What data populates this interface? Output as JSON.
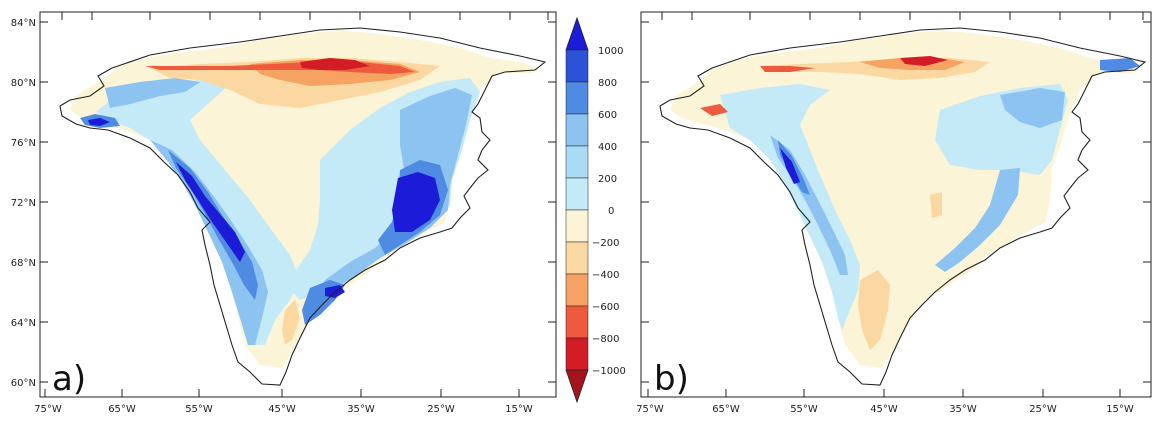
{
  "figure": {
    "panels": [
      {
        "label": "a)"
      },
      {
        "label": "b)"
      }
    ],
    "lat_ticks": [
      "60°N",
      "64°N",
      "68°N",
      "72°N",
      "76°N",
      "80°N",
      "84°N"
    ],
    "lon_ticks": [
      "75°W",
      "65°W",
      "55°W",
      "45°W",
      "35°W",
      "25°W",
      "15°W"
    ],
    "lon_ticks_b": [
      "75°W",
      "65°W",
      "55°W",
      "45°W",
      "35°W",
      "25°W",
      "15°W"
    ]
  },
  "colorbar": {
    "labels": [
      "1000",
      "800",
      "600",
      "400",
      "200",
      "0",
      "−200",
      "−400",
      "−600",
      "−800",
      "−1000"
    ],
    "colors": [
      "#1c1cd8",
      "#2a53d8",
      "#4f8ae3",
      "#8cc3f0",
      "#c4e9f7",
      "#fbf4d6",
      "#fbd8a2",
      "#f5a262",
      "#ee5a3e",
      "#d21d26",
      "#a3141f"
    ],
    "extend_top_color": "#1c1cd8",
    "extend_bottom_color": "#a3141f"
  },
  "palette": {
    "deep_blue": "#1c1cd8",
    "blue": "#2a53d8",
    "mid_blue": "#4f8ae3",
    "light_blue": "#8cc3f0",
    "pale_blue": "#c4e9f7",
    "cream": "#fbf4d6",
    "tan": "#fbd8a2",
    "orange": "#f5a262",
    "red": "#ee5a3e",
    "dark_red": "#d21d26"
  }
}
